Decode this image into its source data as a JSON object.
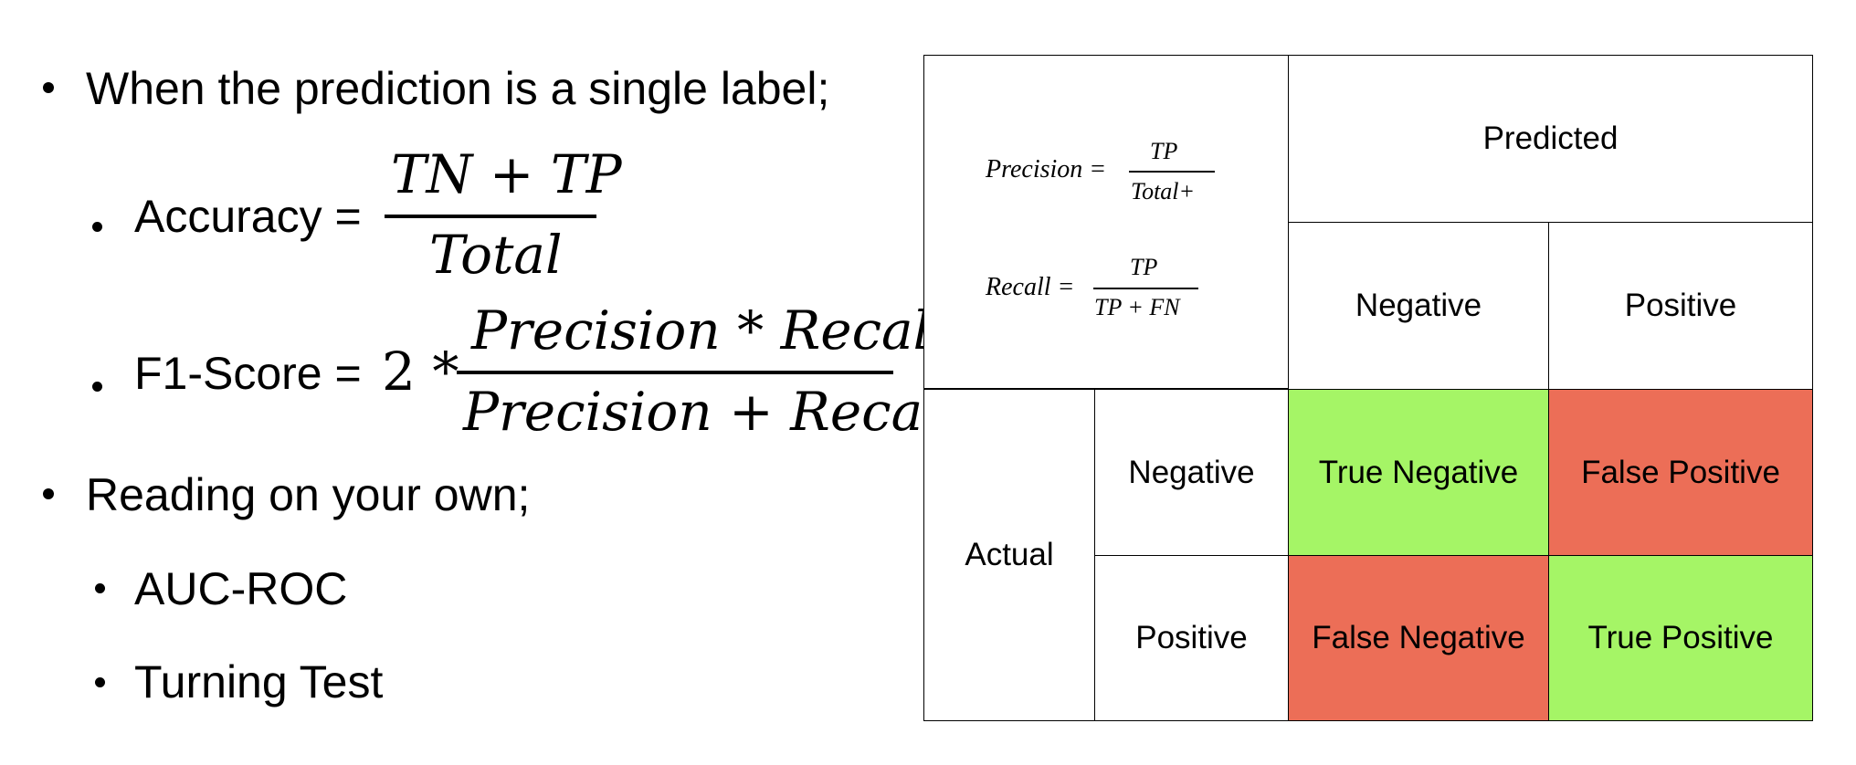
{
  "left": {
    "bullet1": "When the prediction is a single label;",
    "accuracy": {
      "label": "Accuracy =",
      "numerator": "TN + TP",
      "denominator": "Total"
    },
    "f1": {
      "label": "F1-Score =",
      "coef": "2 *",
      "numerator": "Precision * Recall",
      "denominator": "Precision + Recall"
    },
    "bullet2": "Reading on your own;",
    "sub_items": [
      "AUC-ROC",
      "Turning Test"
    ]
  },
  "matrix": {
    "precision": {
      "label": "Precision =",
      "numerator": "TP",
      "denominator": "Total+"
    },
    "recall": {
      "label": "Recall =",
      "numerator": "TP",
      "denominator": "TP + FN"
    },
    "predicted": "Predicted",
    "actual": "Actual",
    "pred_negative": "Negative",
    "pred_positive": "Positive",
    "act_negative": "Negative",
    "act_positive": "Positive",
    "tn": "True Negative",
    "fp": "False Positive",
    "fn": "False Negative",
    "tp": "True Positive",
    "colors": {
      "correct": "#a5f566",
      "wrong": "#ec6e57"
    }
  }
}
